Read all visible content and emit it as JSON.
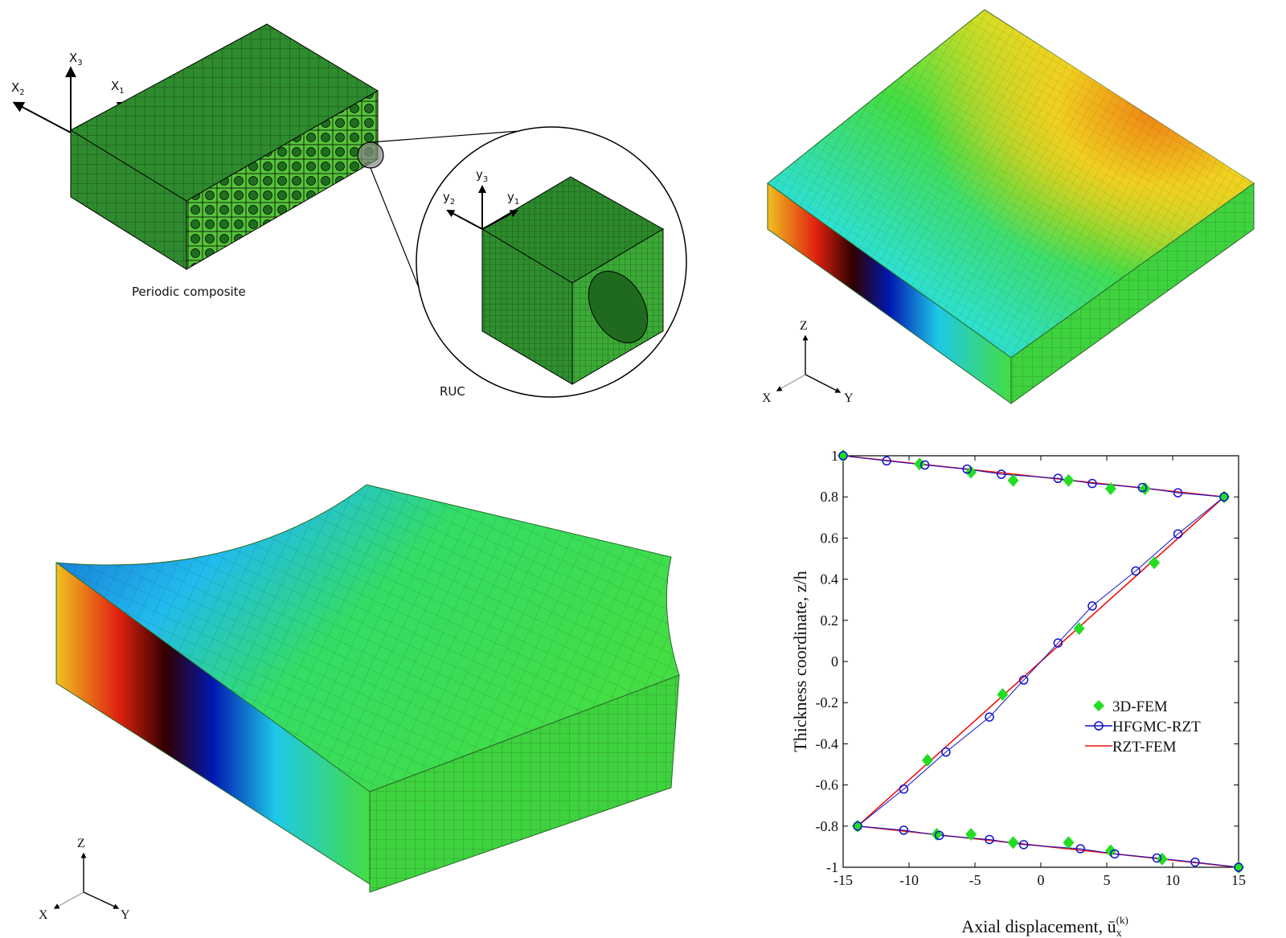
{
  "panel_a": {
    "caption_periodic": "Periodic composite",
    "caption_ruc": "RUC",
    "global_axes": {
      "x1": "X",
      "x1_sub": "1",
      "x2": "X",
      "x2_sub": "2",
      "x3": "X",
      "x3_sub": "3"
    },
    "local_axes": {
      "y1": "y",
      "y1_sub": "1",
      "y2": "y",
      "y2_sub": "2",
      "y3": "y",
      "y3_sub": "3"
    }
  },
  "panel_b": {
    "triad": {
      "z": "Z",
      "x": "X",
      "y": "Y"
    }
  },
  "panel_c": {
    "triad": {
      "z": "Z",
      "x": "X",
      "y": "Y"
    }
  },
  "colors": {
    "composite_dark": "#2e8b2e",
    "composite_light": "#5cc83c",
    "fem_green": "#33dd33",
    "series_3dfem": "#22dd22",
    "series_hfgmc": "#1010cc",
    "series_rztfem": "#ee1111"
  },
  "chart_data": {
    "type": "line",
    "xlabel": "Axial displacement, ū",
    "xlabel_sub": "x",
    "xlabel_sup": "(k)",
    "ylabel": "Thickness coordinate, z/h",
    "xlim": [
      -15,
      15
    ],
    "ylim": [
      -1,
      1
    ],
    "xticks": [
      "-15",
      "-10",
      "-5",
      "0",
      "5",
      "10",
      "15"
    ],
    "xtick_values": [
      -15,
      -10,
      -5,
      0,
      5,
      10,
      15
    ],
    "yticks": [
      "1",
      "0.8",
      "0.6",
      "0.4",
      "0.2",
      "0",
      "-0.2",
      "-0.4",
      "-0.6",
      "-0.8",
      "-1"
    ],
    "ytick_values": [
      1,
      0.8,
      0.6,
      0.4,
      0.2,
      0,
      -0.2,
      -0.4,
      -0.6,
      -0.8,
      -1
    ],
    "legend_position": "center-right",
    "series": [
      {
        "name": "3D-FEM",
        "marker": "diamond",
        "x": [
          -15,
          -9.2,
          -5.3,
          -2.1,
          2.1,
          5.3,
          7.9,
          13.9,
          8.6,
          2.9,
          -2.9,
          -8.6,
          -13.9,
          -7.9,
          -5.3,
          -2.1,
          2.1,
          5.3,
          9.2,
          15
        ],
        "y": [
          1,
          0.96,
          0.92,
          0.88,
          0.88,
          0.84,
          0.84,
          0.8,
          0.48,
          0.16,
          -0.16,
          -0.48,
          -0.8,
          -0.84,
          -0.84,
          -0.88,
          -0.88,
          -0.92,
          -0.96,
          -1
        ]
      },
      {
        "name": "HFGMC-RZT",
        "marker": "circle",
        "x": [
          -15,
          -11.7,
          -8.8,
          -5.6,
          -3,
          1.3,
          3.9,
          7.7,
          10.4,
          13.9,
          10.4,
          7.2,
          3.9,
          1.3,
          -1.3,
          -3.9,
          -7.2,
          -10.4,
          -13.9,
          -10.4,
          -7.7,
          -3.9,
          -1.3,
          3,
          5.6,
          8.8,
          11.7,
          15
        ],
        "y": [
          1,
          0.975,
          0.955,
          0.935,
          0.91,
          0.89,
          0.865,
          0.845,
          0.82,
          0.8,
          0.62,
          0.44,
          0.27,
          0.09,
          -0.09,
          -0.27,
          -0.44,
          -0.62,
          -0.8,
          -0.82,
          -0.845,
          -0.865,
          -0.89,
          -0.91,
          -0.935,
          -0.955,
          -0.975,
          -1
        ]
      },
      {
        "name": "RZT-FEM",
        "marker": "none",
        "x": [
          -15,
          13.9,
          -13.9,
          15
        ],
        "y": [
          1,
          0.8,
          -0.8,
          -1
        ]
      }
    ]
  }
}
